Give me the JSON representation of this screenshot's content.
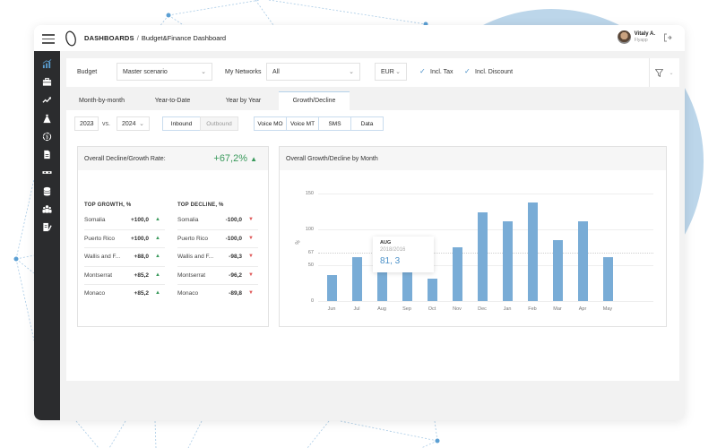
{
  "header": {
    "section": "DASHBOARDS",
    "separator": "/",
    "page": "Budget&Finance Dashboard",
    "user_name": "Vitaly A.",
    "user_company": "Flyapp"
  },
  "sidebar": {
    "items": [
      {
        "name": "analytics",
        "icon": "bar-chart-icon",
        "active": true
      },
      {
        "name": "briefcase",
        "icon": "briefcase-icon"
      },
      {
        "name": "trends",
        "icon": "trend-up-icon"
      },
      {
        "name": "budget",
        "icon": "money-bag-icon"
      },
      {
        "name": "currency",
        "icon": "dollar-circle-icon"
      },
      {
        "name": "documents",
        "icon": "document-icon"
      },
      {
        "name": "roaming",
        "icon": "mask-icon"
      },
      {
        "name": "database",
        "icon": "database-icon"
      },
      {
        "name": "users",
        "icon": "users-icon"
      },
      {
        "name": "reports",
        "icon": "edit-document-icon"
      }
    ]
  },
  "filters": {
    "budget_label": "Budget",
    "budget_value": "Master scenario",
    "networks_label": "My Networks",
    "networks_value": "All",
    "currency_value": "EUR",
    "incl_tax_label": "Incl. Tax",
    "incl_tax_checked": true,
    "incl_discount_label": "Incl. Discount",
    "incl_discount_checked": true
  },
  "tabs": [
    {
      "label": "Month-by-month"
    },
    {
      "label": "Year-to-Date"
    },
    {
      "label": "Year by Year"
    },
    {
      "label": "Growth/Decline",
      "active": true
    }
  ],
  "controls": {
    "year_from": "2023",
    "vs_label": "vs.",
    "year_to": "2024",
    "direction": [
      {
        "label": "Inbound",
        "active": true
      },
      {
        "label": "Outbound",
        "active": false
      }
    ],
    "services": [
      {
        "label": "Voice MO"
      },
      {
        "label": "Voice MT"
      },
      {
        "label": "SMS"
      },
      {
        "label": "Data"
      }
    ]
  },
  "rate_card": {
    "title": "Overall Decline/Growth Rate:",
    "value": "+67,2%",
    "growth_header": "TOP GROWTH, %",
    "decline_header": "TOP DECLINE, %",
    "growth": [
      {
        "country": "Somalia",
        "value": "+100,0"
      },
      {
        "country": "Puerto Rico",
        "value": "+100,0"
      },
      {
        "country": "Wallis and F...",
        "value": "+88,0"
      },
      {
        "country": "Montserrat",
        "value": "+85,2"
      },
      {
        "country": "Monaco",
        "value": "+85,2"
      }
    ],
    "decline": [
      {
        "country": "Somalia",
        "value": "-100,0"
      },
      {
        "country": "Puerto Rico",
        "value": "-100,0"
      },
      {
        "country": "Wallis and F...",
        "value": "-98,3"
      },
      {
        "country": "Montserrat",
        "value": "-96,2"
      },
      {
        "country": "Monaco",
        "value": "-89,8"
      }
    ]
  },
  "chart_card": {
    "title": "Overall Growth/Decline by Month",
    "tooltip": {
      "month": "AUG",
      "years": "2018/2016",
      "value": "81, 3"
    }
  },
  "chart_data": {
    "type": "bar",
    "title": "Overall Growth/Decline by Month",
    "categories": [
      "Jun",
      "Jul",
      "Aug",
      "Sep",
      "Oct",
      "Nov",
      "Dec",
      "Jan",
      "Feb",
      "Mar",
      "Apr",
      "May"
    ],
    "values": [
      36,
      61,
      81.3,
      55,
      31,
      75,
      124,
      111,
      137,
      85,
      111,
      61
    ],
    "ylabel": "%",
    "xlabel": "",
    "yticks": [
      0,
      50,
      67,
      100,
      150
    ],
    "ylim": [
      0,
      150
    ],
    "reference_line": 67,
    "grid": true,
    "color": "#79acd6"
  },
  "colors": {
    "accent": "#4a90c8",
    "bar": "#79acd6",
    "growth": "#3a9a5c",
    "decline": "#e05a5a",
    "sidebar": "#2b2c2e"
  }
}
